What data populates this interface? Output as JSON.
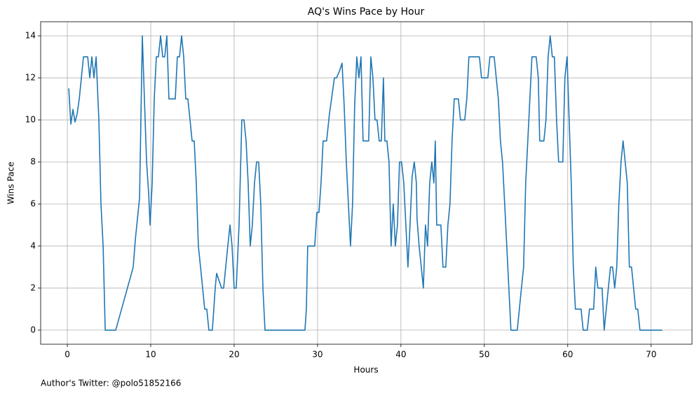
{
  "chart_data": {
    "type": "line",
    "title": "AQ's Wins Pace by Hour",
    "xlabel": "Hours",
    "ylabel": "Wins Pace",
    "footnote": "Author's Twitter: @polo51852166",
    "color": "#1f77b4",
    "grid": true,
    "xlim": [
      -3.2,
      74.9
    ],
    "ylim": [
      -0.67,
      14.67
    ],
    "xticks": [
      0,
      10,
      20,
      30,
      40,
      50,
      60,
      70
    ],
    "yticks": [
      0,
      2,
      4,
      6,
      8,
      10,
      12,
      14
    ],
    "x": [
      0.17,
      0.42,
      0.67,
      0.92,
      1.18,
      1.43,
      1.68,
      1.93,
      2.44,
      2.69,
      2.94,
      3.19,
      3.45,
      3.78,
      4.03,
      4.29,
      4.54,
      5.8,
      7.9,
      8.15,
      8.66,
      8.99,
      9.24,
      9.5,
      9.75,
      9.92,
      10.17,
      10.42,
      10.67,
      10.92,
      11.18,
      11.43,
      11.68,
      11.93,
      12.18,
      12.94,
      13.19,
      13.45,
      13.7,
      13.95,
      14.2,
      14.45,
      14.71,
      14.96,
      15.21,
      15.46,
      15.71,
      15.97,
      16.22,
      16.47,
      16.72,
      16.97,
      17.39,
      17.73,
      17.9,
      18.24,
      18.49,
      18.74,
      18.99,
      19.24,
      19.5,
      19.75,
      20,
      20.25,
      20.59,
      20.92,
      21.18,
      21.43,
      21.68,
      21.93,
      22.18,
      22.44,
      22.69,
      22.94,
      23.19,
      23.45,
      23.7,
      28.49,
      28.66,
      28.82,
      29.66,
      29.92,
      30.17,
      30.42,
      30.67,
      31.09,
      31.43,
      31.68,
      32.02,
      32.27,
      32.61,
      32.94,
      33.19,
      33.45,
      33.7,
      33.95,
      34.2,
      34.45,
      34.71,
      34.96,
      35.21,
      35.46,
      36.13,
      36.39,
      36.64,
      36.89,
      37.14,
      37.39,
      37.65,
      37.9,
      38.07,
      38.32,
      38.57,
      38.82,
      39.08,
      39.33,
      39.58,
      39.83,
      40.08,
      40.34,
      40.59,
      40.84,
      41.09,
      41.34,
      41.6,
      41.85,
      41.93,
      42.18,
      42.44,
      42.69,
      42.94,
      43.19,
      43.45,
      43.7,
      43.95,
      44.12,
      44.29,
      44.79,
      45.04,
      45.38,
      45.63,
      45.88,
      46.13,
      46.39,
      46.89,
      47.14,
      47.65,
      47.9,
      48.15,
      49.41,
      49.66,
      50.42,
      50.67,
      51.18,
      51.43,
      51.68,
      51.93,
      52.18,
      52.44,
      52.69,
      52.94,
      53.19,
      53.95,
      54.2,
      54.45,
      54.71,
      54.96,
      55.21,
      55.46,
      55.71,
      56.22,
      56.47,
      56.64,
      57.14,
      57.39,
      57.65,
      57.9,
      58.15,
      58.4,
      58.66,
      58.91,
      59.41,
      59.66,
      59.92,
      60.17,
      60.42,
      60.67,
      60.92,
      61.6,
      61.85,
      62.35,
      62.61,
      63.11,
      63.36,
      63.61,
      64.12,
      64.37,
      64.62,
      64.87,
      65.13,
      65.38,
      65.63,
      65.88,
      66.13,
      66.39,
      66.64,
      66.89,
      67.14,
      67.39,
      67.65,
      67.9,
      68.15,
      68.4,
      68.66,
      71.34
    ],
    "values": [
      11.5,
      9.8,
      10.5,
      9.9,
      10.3,
      11,
      12,
      13,
      13,
      12,
      13,
      12,
      13,
      10,
      6,
      4,
      0,
      0,
      3,
      4.3,
      6.3,
      14,
      11,
      8,
      6.5,
      5,
      7,
      11,
      13,
      13,
      14,
      13,
      13,
      14,
      11,
      11,
      13,
      13,
      14,
      13,
      11,
      11,
      10,
      9,
      9,
      7,
      4,
      3,
      2,
      1,
      1,
      0,
      0,
      2,
      2.7,
      2.3,
      2,
      2,
      3,
      4,
      5,
      4,
      2,
      2,
      5,
      10,
      10,
      9,
      7,
      4,
      5,
      7,
      8,
      8,
      6,
      2,
      0,
      0,
      1,
      4,
      4,
      5.6,
      5.6,
      7,
      9,
      9,
      10.3,
      11,
      12,
      12,
      12.3,
      12.7,
      10.7,
      8,
      6,
      4,
      6,
      10.7,
      13,
      12,
      13,
      9,
      9,
      13,
      12,
      10,
      10,
      9,
      9,
      12,
      9,
      9,
      8,
      4,
      6,
      4,
      5,
      8,
      8,
      7,
      5,
      3,
      5,
      7.3,
      8,
      7,
      5.3,
      4,
      3,
      2,
      5,
      4,
      7,
      8,
      7,
      9,
      5,
      5,
      3,
      3,
      5,
      6,
      9,
      11,
      11,
      10,
      10,
      11,
      13,
      13,
      12,
      12,
      13,
      13,
      12,
      11,
      9,
      8,
      6,
      4,
      2,
      0,
      0,
      1,
      2,
      3,
      7,
      9,
      11,
      13,
      13,
      12,
      9,
      9,
      10,
      13,
      14,
      13,
      13,
      10,
      8,
      8,
      12,
      13,
      10,
      7,
      3,
      1,
      1,
      0,
      0,
      1,
      1,
      3,
      2,
      2,
      0,
      1,
      2,
      3,
      3,
      2,
      3,
      6,
      8,
      9,
      8,
      7,
      3,
      3,
      2,
      1,
      1,
      0,
      0
    ]
  }
}
